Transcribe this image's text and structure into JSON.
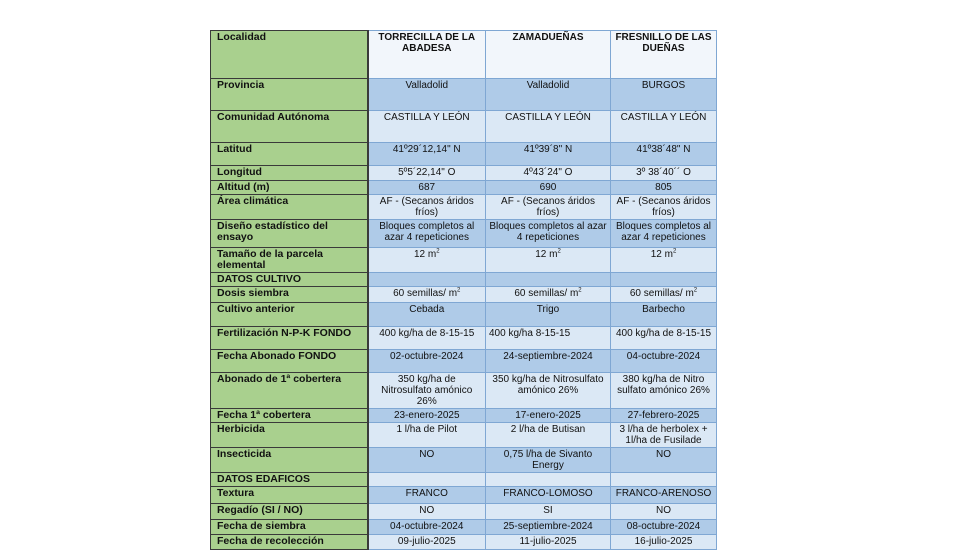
{
  "header": {
    "label": "Localidad",
    "sites": [
      "TORRECILLA DE LA ABADESA",
      "ZAMADUEÑAS",
      "FRESNILLO DE LAS DUEÑAS"
    ]
  },
  "rows": [
    {
      "label": "Provincia",
      "values": [
        "Valladolid",
        "Valladolid",
        "BURGOS"
      ]
    },
    {
      "label": "Comunidad Autónoma",
      "values": [
        "CASTILLA Y LEÓN",
        "CASTILLA Y LEÓN",
        "CASTILLA Y LEÓN"
      ]
    },
    {
      "label": "Latitud",
      "values": [
        "41º29´12,14\" N",
        "41º39´8\" N",
        "41º38´48\" N"
      ]
    },
    {
      "label": "Longitud",
      "values": [
        "5º5´22,14\" O",
        "4º43´24\" O",
        "3º 38´40´´ O"
      ]
    },
    {
      "label": "Altitud (m)",
      "values": [
        "687",
        "690",
        "805"
      ]
    },
    {
      "label": "Área climática",
      "values": [
        "AF - (Secanos áridos fríos)",
        "AF - (Secanos áridos fríos)",
        "AF - (Secanos áridos fríos)"
      ]
    },
    {
      "label": "Diseño estadístico del ensayo",
      "values": [
        "Bloques completos al azar 4 repeticiones",
        "Bloques completos al azar 4 repeticiones",
        "Bloques completos al azar 4 repeticiones"
      ]
    },
    {
      "label": "Tamaño de la parcela elemental",
      "values": [
        "12 m",
        "12 m",
        "12 m"
      ],
      "sup": "2"
    },
    {
      "label": "DATOS CULTIVO",
      "values": [
        "",
        "",
        ""
      ]
    },
    {
      "label": "Dosis siembra",
      "values": [
        "60 semillas/ m",
        "60 semillas/ m",
        "60 semillas/ m"
      ],
      "sup": "2"
    },
    {
      "label": "Cultivo anterior",
      "values": [
        "Cebada",
        "Trigo",
        "Barbecho"
      ]
    },
    {
      "label": "Fertilización N-P-K FONDO",
      "values": [
        "400 kg/ha de 8-15-15",
        "400 kg/ha 8-15-15",
        "400 kg/ha de 8-15-15"
      ]
    },
    {
      "label": "Fecha Abonado FONDO",
      "values": [
        "02-octubre-2024",
        "24-septiembre-2024",
        "04-octubre-2024"
      ]
    },
    {
      "label": "Abonado de 1ª cobertera",
      "values": [
        "350 kg/ha de Nitrosulfato amónico 26%",
        "350 kg/ha de Nitrosulfato amónico 26%",
        "380 kg/ha de Nitro sulfato amónico 26%"
      ]
    },
    {
      "label": "Fecha 1ª cobertera",
      "values": [
        "23-enero-2025",
        "17-enero-2025",
        "27-febrero-2025"
      ]
    },
    {
      "label": "Herbicida",
      "values": [
        "1 l/ha de Pilot",
        "2 l/ha de Butisan",
        "3 l/ha  de herbolex + 1l/ha de Fusilade"
      ]
    },
    {
      "label": "Insecticida",
      "values": [
        "NO",
        "0,75 l/ha de Sivanto Energy",
        "NO"
      ]
    },
    {
      "label": "DATOS EDAFICOS",
      "values": [
        "",
        "",
        ""
      ]
    },
    {
      "label": "Textura",
      "values": [
        "FRANCO",
        "FRANCO-LOMOSO",
        "FRANCO-ARENOSO"
      ]
    },
    {
      "label": "Regadío (SI / NO)",
      "values": [
        "NO",
        "SI",
        "NO"
      ]
    },
    {
      "label": "Fecha de siembra",
      "values": [
        "04-octubre-2024",
        "25-septiembre-2024",
        "08-octubre-2024"
      ]
    },
    {
      "label": "Fecha de recolección",
      "values": [
        "09-julio-2025",
        "11-julio-2025",
        "16-julio-2025"
      ]
    }
  ]
}
